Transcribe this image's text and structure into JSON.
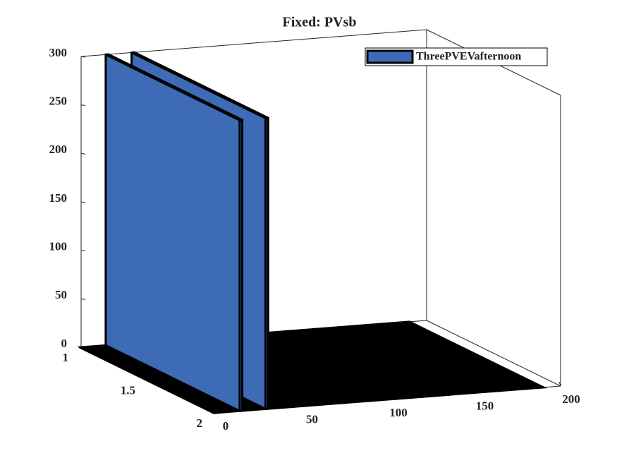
{
  "chart_data": {
    "type": "bar3",
    "title": "Fixed: PVsb",
    "x": [
      0,
      15,
      30,
      45,
      60,
      75,
      90,
      105,
      120,
      135,
      150,
      165,
      180
    ],
    "series": [
      {
        "name": "ThreePVEVafternoon",
        "color": "#3d6bb5",
        "values": [
          0,
          300,
          300,
          0,
          0,
          0,
          0,
          0,
          0,
          0,
          0,
          0,
          0
        ]
      }
    ],
    "xlim": [
      0,
      200
    ],
    "xticks": [
      0,
      50,
      100,
      150,
      200
    ],
    "ylim": [
      1,
      2
    ],
    "yticks": [
      1,
      1.5,
      2
    ],
    "zlim": [
      0,
      300
    ],
    "zticks": [
      0,
      50,
      100,
      150,
      200,
      250,
      300
    ],
    "legend": "top-right"
  }
}
